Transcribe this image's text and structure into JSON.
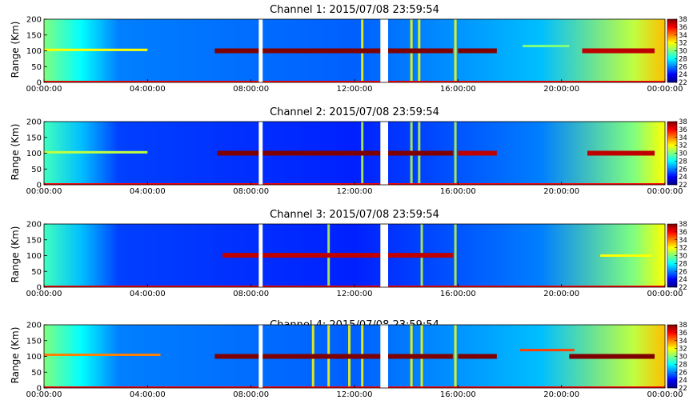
{
  "figure": {
    "background": "#ffffff"
  },
  "colormap": {
    "stops": [
      "#00007f",
      "#0000ff",
      "#007fff",
      "#00ffff",
      "#7fff7f",
      "#ffff00",
      "#ff7f00",
      "#ff0000",
      "#7f0000"
    ]
  },
  "chart_data": [
    {
      "type": "heatmap",
      "title": "Channel 1: 2015/07/08 23:59:54",
      "xlabel": "",
      "ylabel": "Range (Km)",
      "x_ticks": [
        "00:00:00",
        "04:00:00",
        "08:00:00",
        "12:00:00",
        "16:00:00",
        "20:00:00",
        "00:00:00"
      ],
      "y_ticks": [
        "0",
        "50",
        "100",
        "150",
        "200"
      ],
      "ylim": [
        0,
        200
      ],
      "xlim_hours": [
        0,
        24
      ],
      "colorbar_ticks": [
        "22",
        "24",
        "26",
        "28",
        "30",
        "32",
        "34",
        "36",
        "38"
      ],
      "colorbar_range": [
        22,
        38
      ],
      "background_value": 27,
      "data_gaps_hours": [
        [
          8.3,
          8.45
        ],
        [
          13.0,
          13.3
        ]
      ],
      "layers": [
        {
          "x": [
            0,
            4.0
          ],
          "range_km": 103,
          "value": 32
        },
        {
          "x": [
            6.6,
            15.8
          ],
          "range_km": 100,
          "value": 38
        },
        {
          "x": [
            16.0,
            17.5
          ],
          "range_km": 100,
          "value": 38
        },
        {
          "x": [
            18.5,
            20.3
          ],
          "range_km": 115,
          "value": 30
        },
        {
          "x": [
            20.8,
            23.6
          ],
          "range_km": 100,
          "value": 37
        }
      ],
      "vertical_streaks_hours": [
        12.3,
        14.2,
        14.5,
        15.9
      ]
    },
    {
      "type": "heatmap",
      "title": "Channel 2: 2015/07/08 23:59:54",
      "xlabel": "",
      "ylabel": "Range (Km)",
      "x_ticks": [
        "00:00:00",
        "04:00:00",
        "08:00:00",
        "12:00:00",
        "16:00:00",
        "20:00:00",
        "00:00:00"
      ],
      "y_ticks": [
        "0",
        "50",
        "100",
        "150",
        "200"
      ],
      "ylim": [
        0,
        200
      ],
      "xlim_hours": [
        0,
        24
      ],
      "colorbar_ticks": [
        "22",
        "24",
        "26",
        "28",
        "30",
        "32",
        "34",
        "36",
        "38"
      ],
      "colorbar_range": [
        22,
        38
      ],
      "background_value": 26,
      "data_gaps_hours": [
        [
          8.3,
          8.45
        ],
        [
          13.0,
          13.3
        ]
      ],
      "layers": [
        {
          "x": [
            0,
            4.0
          ],
          "range_km": 103,
          "value": 31
        },
        {
          "x": [
            6.7,
            15.8
          ],
          "range_km": 100,
          "value": 38
        },
        {
          "x": [
            16.0,
            17.5
          ],
          "range_km": 100,
          "value": 37
        },
        {
          "x": [
            21.0,
            23.6
          ],
          "range_km": 100,
          "value": 37
        }
      ],
      "vertical_streaks_hours": [
        12.3,
        14.2,
        14.5,
        15.9
      ]
    },
    {
      "type": "heatmap",
      "title": "Channel 3: 2015/07/08 23:59:54",
      "xlabel": "",
      "ylabel": "Range (Km)",
      "x_ticks": [
        "00:00:00",
        "04:00:00",
        "08:00:00",
        "12:00:00",
        "16:00:00",
        "20:00:00",
        "00:00:00"
      ],
      "y_ticks": [
        "0",
        "50",
        "100",
        "150",
        "200"
      ],
      "ylim": [
        0,
        200
      ],
      "xlim_hours": [
        0,
        24
      ],
      "colorbar_ticks": [
        "22",
        "24",
        "26",
        "28",
        "30",
        "32",
        "34",
        "36",
        "38"
      ],
      "colorbar_range": [
        22,
        38
      ],
      "background_value": 26,
      "data_gaps_hours": [
        [
          8.3,
          8.45
        ],
        [
          13.0,
          13.3
        ]
      ],
      "layers": [
        {
          "x": [
            6.9,
            15.8
          ],
          "range_km": 101,
          "value": 37
        },
        {
          "x": [
            21.5,
            23.5
          ],
          "range_km": 100,
          "value": 32
        }
      ],
      "vertical_streaks_hours": [
        11.0,
        14.6,
        15.9
      ]
    },
    {
      "type": "heatmap",
      "title": "Channel 4: 2015/07/08 23:59:54",
      "xlabel": "",
      "ylabel": "Range (Km)",
      "x_ticks": [
        "00:00:00",
        "04:00:00",
        "08:00:00",
        "12:00:00",
        "16:00:00",
        "20:00:00",
        "00:00:00"
      ],
      "y_ticks": [
        "0",
        "50",
        "100",
        "150",
        "200"
      ],
      "ylim": [
        0,
        200
      ],
      "xlim_hours": [
        0,
        24
      ],
      "colorbar_ticks": [
        "22",
        "24",
        "26",
        "28",
        "30",
        "32",
        "34",
        "36",
        "38"
      ],
      "colorbar_range": [
        22,
        38
      ],
      "background_value": 27,
      "data_gaps_hours": [
        [
          8.3,
          8.45
        ],
        [
          13.0,
          13.3
        ]
      ],
      "layers": [
        {
          "x": [
            0,
            4.5
          ],
          "range_km": 105,
          "value": 34
        },
        {
          "x": [
            6.6,
            15.8
          ],
          "range_km": 100,
          "value": 38
        },
        {
          "x": [
            16.0,
            17.5
          ],
          "range_km": 100,
          "value": 38
        },
        {
          "x": [
            18.4,
            20.5
          ],
          "range_km": 120,
          "value": 35
        },
        {
          "x": [
            20.3,
            23.6
          ],
          "range_km": 100,
          "value": 38
        }
      ],
      "vertical_streaks_hours": [
        10.4,
        11.0,
        11.8,
        12.3,
        14.2,
        14.6,
        15.9
      ]
    }
  ]
}
